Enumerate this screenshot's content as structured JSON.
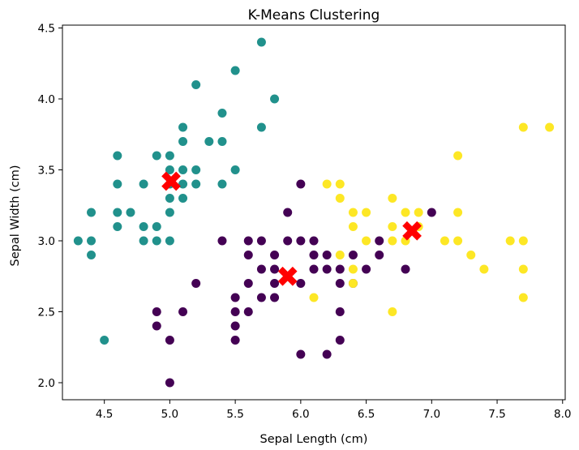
{
  "chart_data": {
    "type": "scatter",
    "title": "K-Means Clustering",
    "xlabel": "Sepal Length (cm)",
    "ylabel": "Sepal Width (cm)",
    "xlim": [
      4.18,
      8.02
    ],
    "ylim": [
      1.88,
      4.52
    ],
    "xticks": [
      4.5,
      5.0,
      5.5,
      6.0,
      6.5,
      7.0,
      7.5,
      8.0
    ],
    "xtick_labels": [
      "4.5",
      "5.0",
      "5.5",
      "6.0",
      "6.5",
      "7.0",
      "7.5",
      "8.0"
    ],
    "yticks": [
      2.0,
      2.5,
      3.0,
      3.5,
      4.0,
      4.5
    ],
    "ytick_labels": [
      "2.0",
      "2.5",
      "3.0",
      "3.5",
      "4.0",
      "4.5"
    ],
    "grid": false,
    "colors": {
      "cluster_0": "#440154",
      "cluster_1": "#21918c",
      "cluster_2": "#fde725",
      "centroid": "#ff0000"
    },
    "series": [
      {
        "cluster": 0,
        "color": "#440154",
        "points": [
          [
            6.0,
            3.4
          ],
          [
            5.6,
            3.0
          ],
          [
            5.7,
            3.0
          ],
          [
            6.1,
            3.0
          ],
          [
            6.0,
            3.0
          ],
          [
            5.9,
            3.0
          ],
          [
            5.8,
            2.9
          ],
          [
            5.6,
            2.9
          ],
          [
            6.2,
            2.9
          ],
          [
            6.1,
            2.9
          ],
          [
            6.4,
            2.9
          ],
          [
            6.6,
            2.9
          ],
          [
            5.7,
            2.8
          ],
          [
            5.8,
            2.8
          ],
          [
            6.1,
            2.8
          ],
          [
            6.2,
            2.8
          ],
          [
            6.3,
            2.8
          ],
          [
            5.6,
            2.7
          ],
          [
            5.8,
            2.7
          ],
          [
            6.0,
            2.7
          ],
          [
            5.2,
            2.7
          ],
          [
            6.3,
            2.7
          ],
          [
            5.7,
            2.6
          ],
          [
            5.5,
            2.6
          ],
          [
            5.8,
            2.6
          ],
          [
            5.6,
            2.5
          ],
          [
            5.5,
            2.5
          ],
          [
            5.1,
            2.5
          ],
          [
            4.9,
            2.5
          ],
          [
            6.3,
            2.5
          ],
          [
            5.5,
            2.4
          ],
          [
            4.9,
            2.4
          ],
          [
            5.0,
            2.3
          ],
          [
            5.5,
            2.3
          ],
          [
            6.3,
            2.3
          ],
          [
            6.0,
            2.2
          ],
          [
            6.2,
            2.2
          ],
          [
            5.0,
            2.0
          ],
          [
            7.0,
            3.2
          ],
          [
            5.9,
            3.2
          ],
          [
            6.6,
            3.0
          ],
          [
            6.8,
            2.8
          ],
          [
            5.4,
            3.0
          ],
          [
            6.5,
            2.8
          ],
          [
            6.4,
            2.7
          ]
        ]
      },
      {
        "cluster": 1,
        "color": "#21918c",
        "points": [
          [
            5.7,
            4.4
          ],
          [
            5.5,
            4.2
          ],
          [
            5.2,
            4.1
          ],
          [
            5.8,
            4.0
          ],
          [
            5.4,
            3.9
          ],
          [
            5.1,
            3.8
          ],
          [
            5.7,
            3.8
          ],
          [
            5.1,
            3.7
          ],
          [
            5.3,
            3.7
          ],
          [
            5.4,
            3.7
          ],
          [
            4.6,
            3.6
          ],
          [
            4.9,
            3.6
          ],
          [
            5.0,
            3.6
          ],
          [
            5.0,
            3.5
          ],
          [
            5.1,
            3.5
          ],
          [
            5.2,
            3.5
          ],
          [
            5.5,
            3.5
          ],
          [
            4.6,
            3.4
          ],
          [
            4.8,
            3.4
          ],
          [
            5.0,
            3.4
          ],
          [
            5.1,
            3.4
          ],
          [
            5.2,
            3.4
          ],
          [
            5.4,
            3.4
          ],
          [
            5.0,
            3.3
          ],
          [
            5.1,
            3.3
          ],
          [
            4.4,
            3.2
          ],
          [
            4.6,
            3.2
          ],
          [
            4.7,
            3.2
          ],
          [
            5.0,
            3.2
          ],
          [
            4.6,
            3.1
          ],
          [
            4.8,
            3.1
          ],
          [
            4.9,
            3.1
          ],
          [
            4.3,
            3.0
          ],
          [
            4.4,
            3.0
          ],
          [
            4.8,
            3.0
          ],
          [
            4.9,
            3.0
          ],
          [
            5.0,
            3.0
          ],
          [
            4.4,
            2.9
          ],
          [
            4.5,
            2.3
          ]
        ]
      },
      {
        "cluster": 2,
        "color": "#fde725",
        "points": [
          [
            7.7,
            3.8
          ],
          [
            7.9,
            3.8
          ],
          [
            7.2,
            3.6
          ],
          [
            6.2,
            3.4
          ],
          [
            6.3,
            3.4
          ],
          [
            6.3,
            3.3
          ],
          [
            6.7,
            3.3
          ],
          [
            6.4,
            3.2
          ],
          [
            6.5,
            3.2
          ],
          [
            6.8,
            3.2
          ],
          [
            6.9,
            3.2
          ],
          [
            7.2,
            3.2
          ],
          [
            6.4,
            3.1
          ],
          [
            6.7,
            3.1
          ],
          [
            6.9,
            3.1
          ],
          [
            6.5,
            3.0
          ],
          [
            6.7,
            3.0
          ],
          [
            6.8,
            3.0
          ],
          [
            7.1,
            3.0
          ],
          [
            7.2,
            3.0
          ],
          [
            7.6,
            3.0
          ],
          [
            7.7,
            3.0
          ],
          [
            6.3,
            2.9
          ],
          [
            7.3,
            2.9
          ],
          [
            6.4,
            2.8
          ],
          [
            7.4,
            2.8
          ],
          [
            7.7,
            2.8
          ],
          [
            6.4,
            2.7
          ],
          [
            6.1,
            2.6
          ],
          [
            7.7,
            2.6
          ],
          [
            6.7,
            2.5
          ]
        ]
      }
    ],
    "centroids": [
      [
        5.01,
        3.42
      ],
      [
        5.9,
        2.75
      ],
      [
        6.85,
        3.07
      ]
    ]
  }
}
